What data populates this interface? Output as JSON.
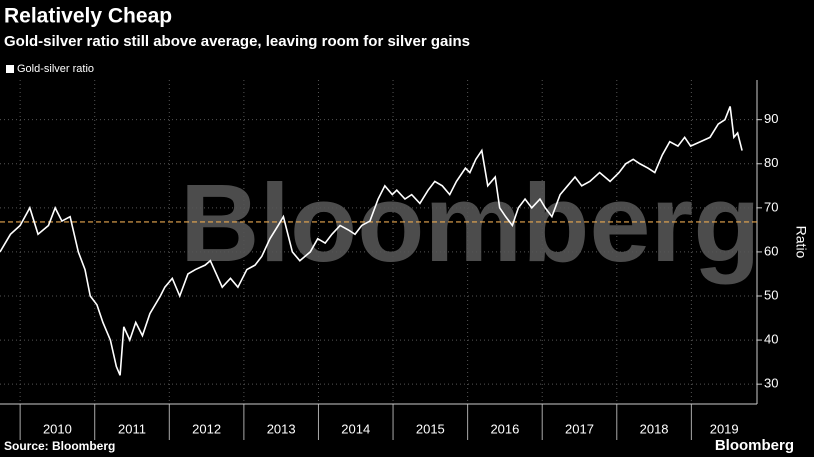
{
  "chart_data": {
    "type": "line",
    "title": "Relatively Cheap",
    "subtitle": "Gold-silver ratio still above average, leaving room for silver gains",
    "y_axis_label": "Ratio",
    "source": "Source: Bloomberg",
    "logo": "Bloomberg",
    "watermark": "Bloomberg",
    "xlim": [
      2009.73,
      2019.88
    ],
    "xticks": [
      2010,
      2011,
      2012,
      2013,
      2014,
      2015,
      2016,
      2017,
      2018,
      2019
    ],
    "ylim": [
      25.5,
      99
    ],
    "yticks": [
      30,
      40,
      50,
      60,
      70,
      80,
      90
    ],
    "grid": true,
    "legend_position": "top-left",
    "reference_line": {
      "value": 66.8,
      "color": "#e8a850"
    },
    "x": [
      2009.73,
      2009.87,
      2010.0,
      2010.13,
      2010.24,
      2010.38,
      2010.47,
      2010.56,
      2010.67,
      2010.78,
      2010.87,
      2010.94,
      2011.03,
      2011.11,
      2011.21,
      2011.29,
      2011.34,
      2011.39,
      2011.47,
      2011.55,
      2011.64,
      2011.74,
      2011.88,
      2011.94,
      2012.04,
      2012.14,
      2012.25,
      2012.35,
      2012.48,
      2012.55,
      2012.63,
      2012.71,
      2012.82,
      2012.92,
      2013.04,
      2013.15,
      2013.24,
      2013.35,
      2013.46,
      2013.53,
      2013.65,
      2013.75,
      2013.89,
      2013.99,
      2014.09,
      2014.18,
      2014.29,
      2014.4,
      2014.49,
      2014.58,
      2014.69,
      2014.8,
      2014.89,
      2014.99,
      2015.05,
      2015.16,
      2015.25,
      2015.36,
      2015.47,
      2015.56,
      2015.66,
      2015.76,
      2015.85,
      2015.97,
      2016.03,
      2016.11,
      2016.19,
      2016.27,
      2016.37,
      2016.43,
      2016.51,
      2016.6,
      2016.68,
      2016.77,
      2016.86,
      2016.97,
      2017.04,
      2017.13,
      2017.24,
      2017.34,
      2017.44,
      2017.53,
      2017.64,
      2017.77,
      2017.91,
      2018.03,
      2018.12,
      2018.22,
      2018.31,
      2018.42,
      2018.51,
      2018.61,
      2018.71,
      2018.82,
      2018.91,
      2018.99,
      2019.12,
      2019.25,
      2019.36,
      2019.45,
      2019.52,
      2019.57,
      2019.62,
      2019.68
    ],
    "series": [
      {
        "name": "Gold-silver ratio",
        "color": "#ffffff",
        "values": [
          60,
          64,
          66,
          70,
          64,
          66,
          70,
          67,
          68,
          60,
          56,
          50,
          48,
          44,
          40,
          34,
          32,
          43,
          40,
          44,
          41,
          46,
          50,
          52,
          54,
          50,
          55,
          56,
          57,
          58,
          55,
          52,
          54,
          52,
          56,
          57,
          59,
          63,
          66,
          68,
          60,
          58,
          60,
          63,
          62,
          64,
          66,
          65,
          64,
          66,
          67,
          72,
          75,
          73,
          74,
          72,
          73,
          71,
          74,
          76,
          75,
          73,
          76,
          79,
          78,
          81,
          83,
          75,
          77,
          70,
          68,
          66,
          70,
          72,
          70,
          72,
          70,
          68,
          73,
          75,
          77,
          75,
          76,
          78,
          76,
          78,
          80,
          81,
          80,
          79,
          78,
          82,
          85,
          84,
          86,
          84,
          85,
          86,
          89,
          90,
          93,
          86,
          87,
          83
        ]
      }
    ]
  }
}
